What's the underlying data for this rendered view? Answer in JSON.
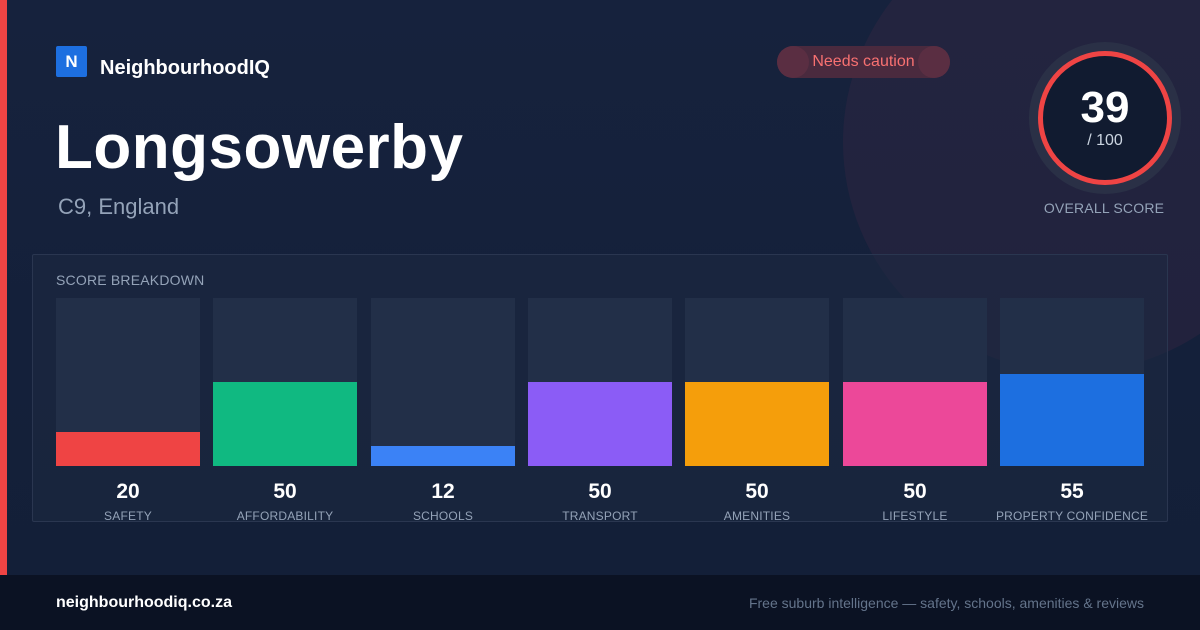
{
  "brand": {
    "logo_letter": "N",
    "name": "NeighbourhoodIQ",
    "color": "#1d6fe0"
  },
  "suburb": {
    "name": "Longsowerby",
    "location": "C9, England"
  },
  "status": {
    "label": "Needs caution",
    "color": "#f87171"
  },
  "overall": {
    "score": "39",
    "denominator": "/ 100",
    "label": "OVERALL SCORE",
    "ring_color": "#ef4444"
  },
  "breakdown": {
    "title": "SCORE BREAKDOWN",
    "categories": [
      {
        "label": "SAFETY",
        "value": "20",
        "score": 20,
        "color": "#ef4444"
      },
      {
        "label": "AFFORDABILITY",
        "value": "50",
        "score": 50,
        "color": "#10b981"
      },
      {
        "label": "SCHOOLS",
        "value": "12",
        "score": 12,
        "color": "#3b82f6"
      },
      {
        "label": "TRANSPORT",
        "value": "50",
        "score": 50,
        "color": "#8b5cf6"
      },
      {
        "label": "AMENITIES",
        "value": "50",
        "score": 50,
        "color": "#f59e0b"
      },
      {
        "label": "LIFESTYLE",
        "value": "50",
        "score": 50,
        "color": "#ec4899"
      },
      {
        "label": "PROPERTY CONFIDENCE",
        "value": "55",
        "score": 55,
        "color": "#1d6fe0"
      }
    ]
  },
  "footer": {
    "url": "neighbourhoodiq.co.za",
    "tagline": "Free suburb intelligence — safety, schools, amenities & reviews"
  }
}
